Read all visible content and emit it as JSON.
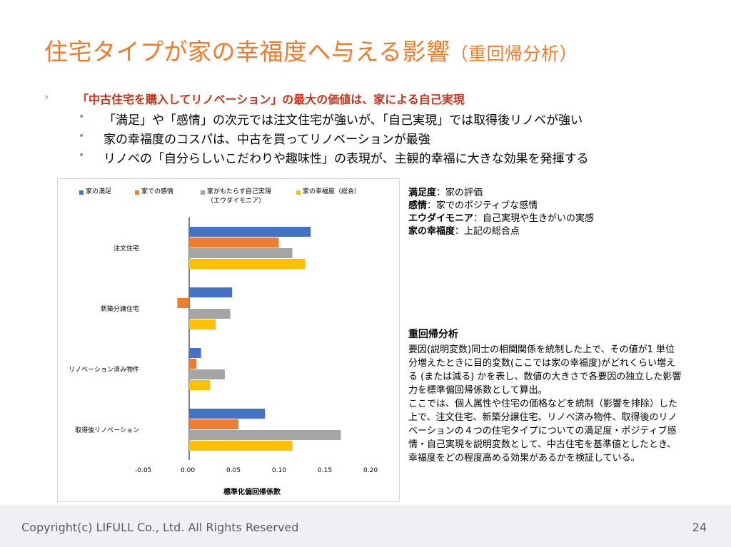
{
  "slide": {
    "title_main": "住宅タイプが家の幸福度へ与える影響",
    "title_sub": "（重回帰分析）",
    "bullet_main_marker": "›",
    "bullet_main": "「中古住宅を購入してリノベーション」の最大の価値は、家による自己実現",
    "sub_marker": "•",
    "sub_bullets": [
      "「満足」や「感情」の次元では注文住宅が強いが、「自己実現」では取得後リノベが強い",
      "家の幸福度のコスパは、中古を買ってリノベーションが最強",
      "リノベの「自分らしいこだわりや趣味性」の表現が、主観的幸福に大きな効果を発揮する"
    ]
  },
  "definitions": [
    {
      "term": "満足度",
      "desc": "：家の評価"
    },
    {
      "term": "感情",
      "desc": "：家でのポジティブな感情"
    },
    {
      "term": "エウダイモニア",
      "desc": "：自己実現や生きがいの実感"
    },
    {
      "term": "家の幸福度",
      "desc": "：上記の総合点"
    }
  ],
  "regression": {
    "title": "重回帰分析",
    "para1": "要因(説明変数)同士の相関関係を統制した上で、その値が1 単位分増えたときに目的変数(ここでは家の幸福度)がどれくらい増える (または減る) かを表し、数値の大きさで各要因の独立した影響力を標準偏回帰係数として算出。",
    "para2": "ここでは、個人属性や住宅の価格などを統制（影響を排除）した上で、注文住宅、新築分譲住宅、リノベ済み物件、取得後のリノベーションの４つの住宅タイプについての満足度・ポジティブ感情・自己実現を説明変数として、中古住宅を基準値としたとき、幸福度をどの程度高める効果があるかを検証している。"
  },
  "footer": {
    "copyright": "Copyright(c) LIFULL Co., Ltd. All Rights Reserved",
    "page": "24"
  },
  "colors": {
    "title": "#f07a2b",
    "bullet_main": "#c2321c",
    "series_blue": "#4472c4",
    "series_orange": "#ed7d31",
    "series_gray": "#a5a5a5",
    "series_yellow": "#ffc000"
  },
  "chart_data": {
    "type": "bar",
    "orientation": "horizontal",
    "categories": [
      "注文住宅",
      "新築分譲住宅",
      "リノベーション済み物件",
      "取得後リノベーション"
    ],
    "series": [
      {
        "name": "家の満足",
        "color": "#4472c4",
        "values": [
          0.133,
          0.047,
          0.013,
          0.083
        ]
      },
      {
        "name": "家での感情",
        "color": "#ed7d31",
        "values": [
          0.098,
          -0.013,
          0.008,
          0.054
        ]
      },
      {
        "name": "家がもたらす自己実現（エウダイモニア）",
        "color": "#a5a5a5",
        "values": [
          0.113,
          0.045,
          0.039,
          0.166
        ]
      },
      {
        "name": "家の幸福度（総合）",
        "color": "#ffc000",
        "values": [
          0.127,
          0.029,
          0.023,
          0.113
        ]
      }
    ],
    "legend_labels": [
      {
        "line1": "家の満足",
        "line2": ""
      },
      {
        "line1": "家での感情",
        "line2": ""
      },
      {
        "line1": "家がもたらす自己実現",
        "line2": "（エウダイモニア）"
      },
      {
        "line1": "家の幸福度（総合）",
        "line2": ""
      }
    ],
    "xlabel": "標準化偏回帰係数",
    "xlim": [
      -0.05,
      0.2
    ],
    "xticks": [
      "-0.05",
      "0.00",
      "0.05",
      "0.10",
      "0.15",
      "0.20"
    ],
    "legend_position": "top",
    "grid": false
  }
}
